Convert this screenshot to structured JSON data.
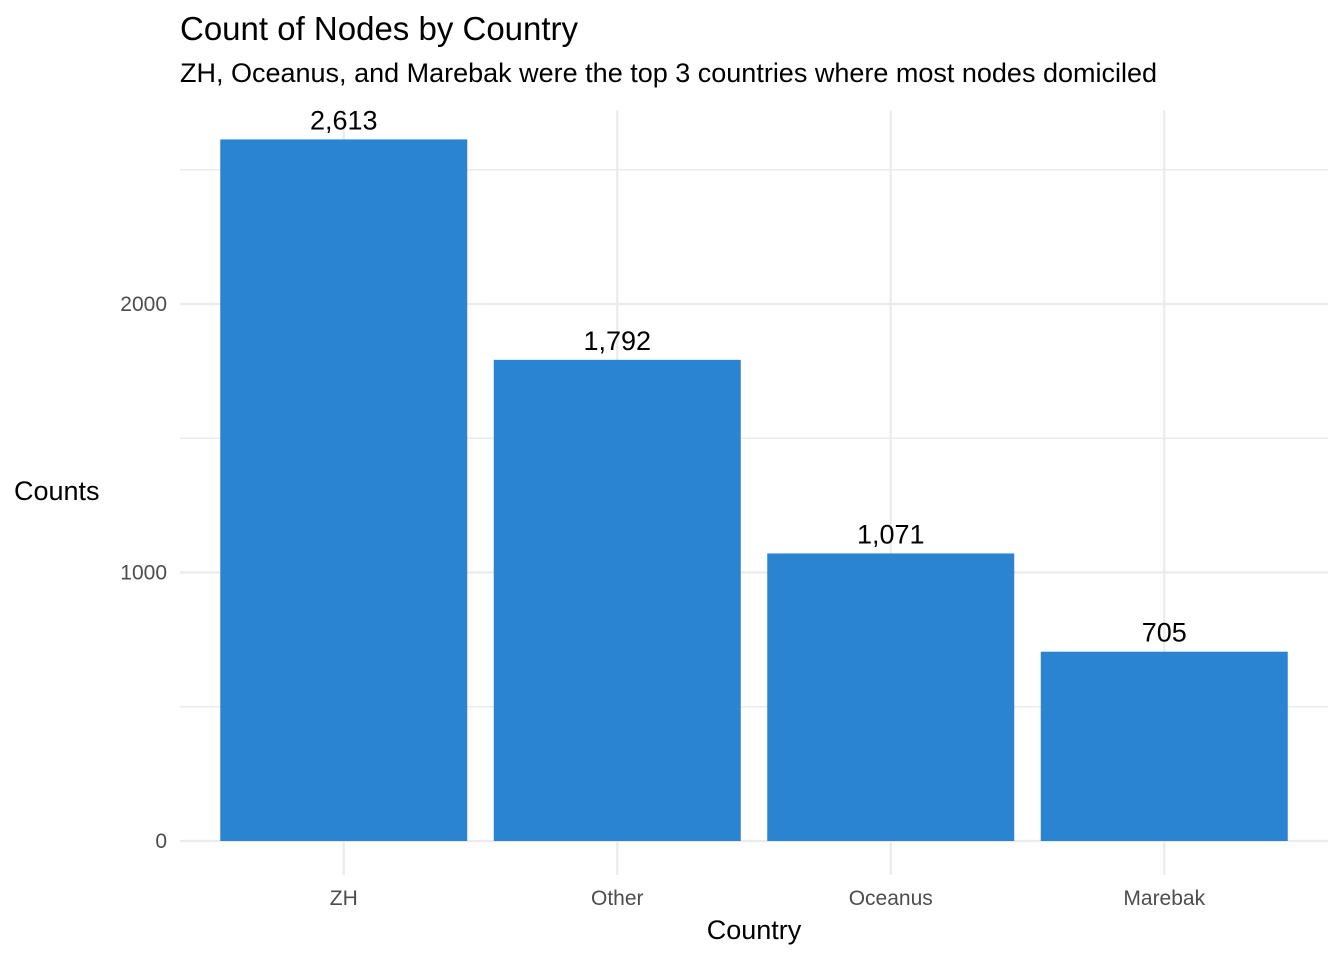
{
  "chart_data": {
    "type": "bar",
    "title": "Count of Nodes by Country",
    "subtitle": "ZH, Oceanus, and Marebak were the top 3 countries where most nodes domiciled",
    "xlabel": "Country",
    "ylabel": "Counts",
    "categories": [
      "ZH",
      "Other",
      "Oceanus",
      "Marebak"
    ],
    "values": [
      2613,
      1792,
      1071,
      705
    ],
    "data_labels": [
      "2,613",
      "1,792",
      "1,071",
      "705"
    ],
    "y_ticks": [
      0,
      1000,
      2000
    ],
    "y_tick_labels": [
      "0",
      "1000",
      "2000"
    ],
    "y_minor_ticks": [
      500,
      1500,
      2500
    ],
    "ylim": [
      0,
      2613
    ],
    "grid": true,
    "legend": "none",
    "bar_color": "#2b84d1",
    "grid_color": "#ebebeb"
  }
}
